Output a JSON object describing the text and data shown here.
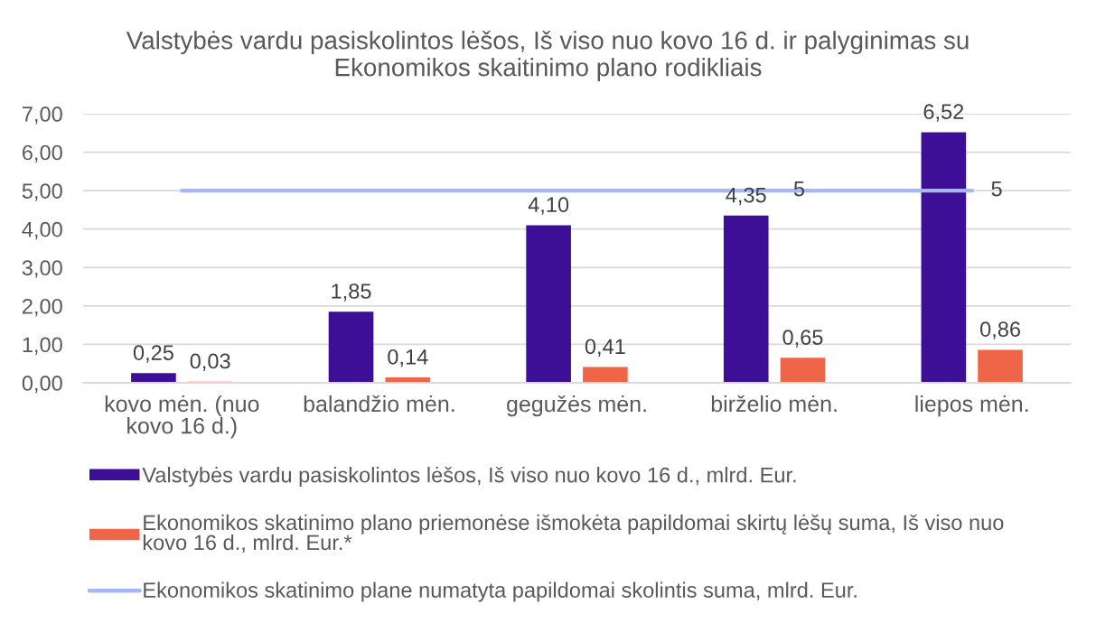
{
  "chart_data": {
    "type": "bar",
    "title": "Valstybės vardu pasiskolintos lėšos, Iš viso nuo kovo 16 d. ir palyginimas su\nEkonomikos skaitinimo plano rodikliais",
    "categories": [
      "kovo mėn. (nuo\nkovo 16 d.)",
      "balandžio mėn.",
      "gegužės mėn.",
      "birželio mėn.",
      "liepos mėn."
    ],
    "series": [
      {
        "name": "Valstybės vardu pasiskolintos lėšos, Iš viso nuo kovo 16 d., mlrd. Eur.",
        "color": "#3d0f96",
        "values": [
          0.25,
          1.85,
          4.1,
          4.35,
          6.52
        ],
        "value_labels": [
          "0,25",
          "1,85",
          "4,10",
          "4,35",
          "6,52"
        ]
      },
      {
        "name": "Ekonomikos skatinimo plano priemonėse išmokėta papildomai skirtų lėšų suma, Iš viso nuo\nkovo 16 d., mlrd. Eur.*",
        "color": "#ef6548",
        "values": [
          0.03,
          0.14,
          0.41,
          0.65,
          0.86
        ],
        "value_labels": [
          "0,03",
          "0,14",
          "0,41",
          "0,65",
          "0,86"
        ]
      },
      {
        "name": "Ekonomikos skatinimo plane numatyta papildomai skolintis suma, mlrd. Eur.",
        "type": "line",
        "color": "#a4b8f5",
        "values": [
          5,
          5,
          5,
          5,
          5
        ],
        "value_labels": [
          null,
          null,
          null,
          "5",
          "5"
        ]
      }
    ],
    "ylim": [
      0,
      7
    ],
    "yticks": [
      {
        "value": 0,
        "label": "0,00"
      },
      {
        "value": 1,
        "label": "1,00"
      },
      {
        "value": 2,
        "label": "2,00"
      },
      {
        "value": 3,
        "label": "3,00"
      },
      {
        "value": 4,
        "label": "4,00"
      },
      {
        "value": 5,
        "label": "5,00"
      },
      {
        "value": 6,
        "label": "6,00"
      },
      {
        "value": 7,
        "label": "7,00"
      }
    ],
    "grid": "y",
    "legend": "bottom"
  }
}
